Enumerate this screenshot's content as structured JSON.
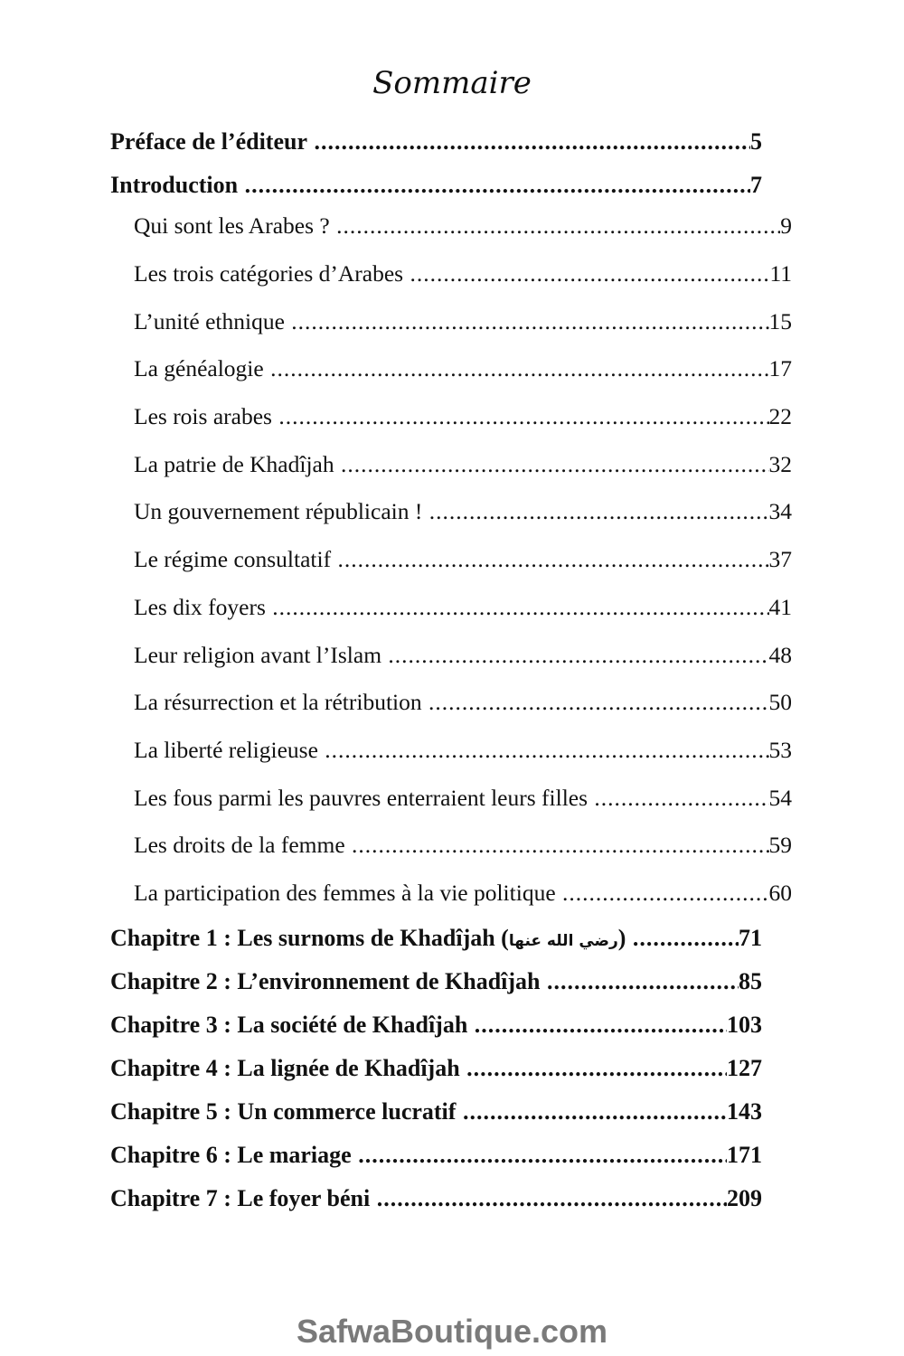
{
  "title": "Sommaire",
  "front": [
    {
      "label": "Préface de l’éditeur",
      "page": "5"
    },
    {
      "label": "Introduction",
      "page": "7"
    }
  ],
  "sections": [
    {
      "label": "Qui sont les Arabes ?",
      "page": "9"
    },
    {
      "label": "Les trois catégories d’Arabes",
      "page": "11"
    },
    {
      "label": "L’unité ethnique",
      "page": "15"
    },
    {
      "label": "La généalogie",
      "page": "17"
    },
    {
      "label": "Les rois arabes",
      "page": "22"
    },
    {
      "label": "La patrie de Khadîjah",
      "page": "32"
    },
    {
      "label": "Un gouvernement républicain !",
      "page": "34"
    },
    {
      "label": "Le régime consultatif",
      "page": "37"
    },
    {
      "label": "Les dix foyers",
      "page": "41"
    },
    {
      "label": "Leur religion avant l’Islam",
      "page": "48"
    },
    {
      "label": "La résurrection et la rétribution",
      "page": "50"
    },
    {
      "label": "La liberté religieuse",
      "page": "53"
    },
    {
      "label": "Les fous parmi les pauvres enterraient leurs filles",
      "page": "54"
    },
    {
      "label": "Les droits de la femme",
      "page": "59"
    },
    {
      "label": "La participation des femmes à la vie politique",
      "page": "60"
    }
  ],
  "chapters": [
    {
      "label": "Chapitre 1 : Les surnoms de Khadîjah (",
      "honorific": "رضي الله عنها",
      "label_end": ")",
      "page": "71"
    },
    {
      "label": "Chapitre 2 : L’environnement de Khadîjah",
      "page": "85"
    },
    {
      "label": "Chapitre 3 : La société de Khadîjah",
      "page": "103"
    },
    {
      "label": "Chapitre 4 : La lignée de Khadîjah",
      "page": "127"
    },
    {
      "label": "Chapitre 5 : Un commerce lucratif",
      "page": "143"
    },
    {
      "label": "Chapitre 6 : Le mariage",
      "page": "171"
    },
    {
      "label": "Chapitre 7 : Le foyer béni",
      "page": "209"
    }
  ],
  "watermark": "SafwaBoutique.com"
}
